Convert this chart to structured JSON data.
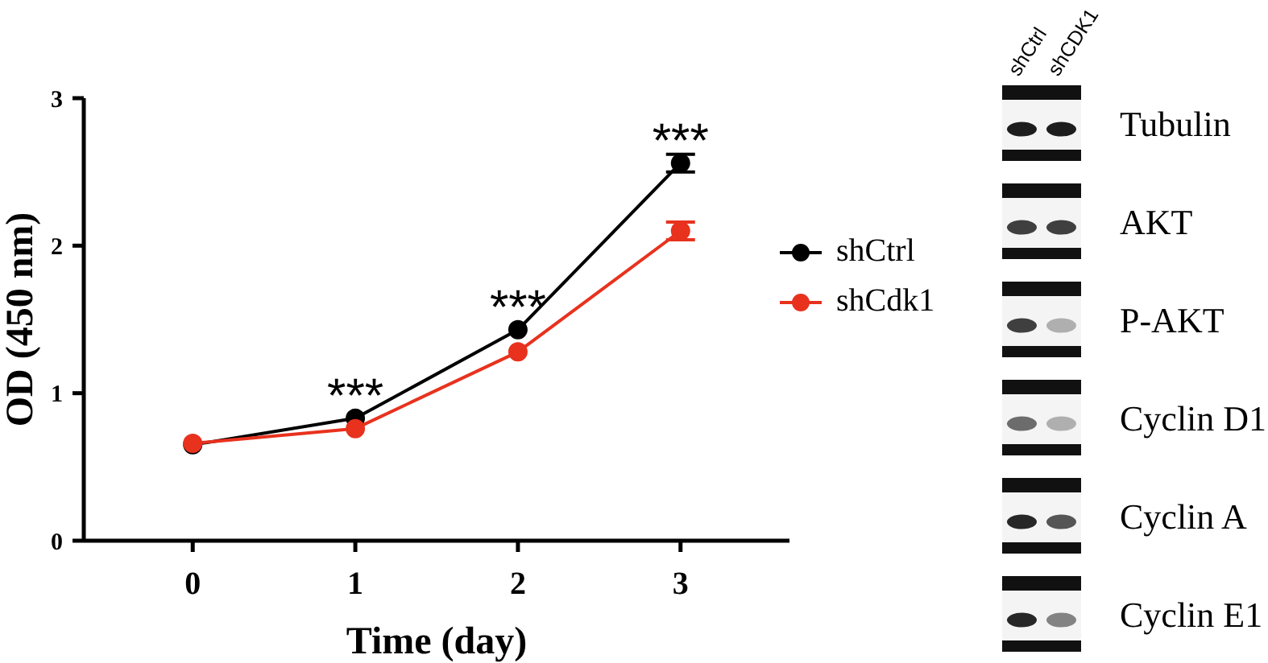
{
  "chart_data": [
    {
      "type": "line",
      "xlabel": "Time (day)",
      "ylabel": "OD (450 nm)",
      "x": [
        0,
        1,
        2,
        3
      ],
      "series": [
        {
          "name": "shCtrl",
          "color": "#000000",
          "values": [
            0.65,
            0.83,
            1.43,
            2.56
          ],
          "errors": [
            null,
            null,
            null,
            0.06
          ]
        },
        {
          "name": "shCdk1",
          "color": "#e8321e",
          "values": [
            0.66,
            0.76,
            1.28,
            2.1
          ],
          "errors": [
            null,
            null,
            null,
            0.06
          ]
        }
      ],
      "xlim": [
        -0.67,
        3.67
      ],
      "ylim": [
        0,
        3
      ],
      "xticks": [
        0,
        1,
        2,
        3
      ],
      "yticks": [
        0,
        1,
        2,
        3
      ],
      "legend": "right",
      "marker": "circle",
      "line_style": "solid",
      "annotations": [
        {
          "text": "***",
          "x": 1,
          "y": 0.83
        },
        {
          "text": "***",
          "x": 2,
          "y": 1.43
        },
        {
          "text": "***",
          "x": 3,
          "y": 2.56
        }
      ]
    },
    {
      "type": "other",
      "categories": [
        "shCtrl",
        "shCDK1"
      ],
      "y_categories": [
        "Tubulin",
        "AKT",
        "P-AKT",
        "Cyclin D1",
        "Cyclin A",
        "Cyclin E1"
      ]
    }
  ]
}
